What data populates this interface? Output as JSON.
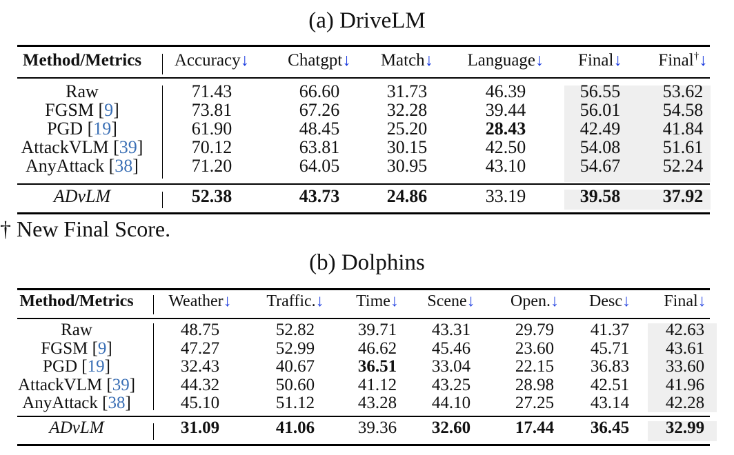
{
  "footnote": "† New Final Score.",
  "tables": [
    {
      "caption": "(a) DriveLM",
      "col_x": [
        119,
        307,
        463,
        590,
        733,
        870,
        990
      ],
      "header": [
        {
          "label": "Method/Metrics",
          "arrow": false,
          "sup": ""
        },
        {
          "label": "Accuracy",
          "arrow": true,
          "sup": ""
        },
        {
          "label": "Chatgpt",
          "arrow": true,
          "sup": ""
        },
        {
          "label": "Match",
          "arrow": true,
          "sup": ""
        },
        {
          "label": "Language",
          "arrow": true,
          "sup": ""
        },
        {
          "label": "Final",
          "arrow": true,
          "sup": ""
        },
        {
          "label": "Final",
          "arrow": true,
          "sup": "†"
        }
      ],
      "rows": [
        {
          "method": "Raw",
          "ref": "",
          "values": [
            "71.43",
            "66.60",
            "31.73",
            "46.39",
            "56.55",
            "53.62"
          ],
          "bold": []
        },
        {
          "method": "FGSM",
          "ref": "9",
          "values": [
            "73.81",
            "67.26",
            "32.28",
            "39.44",
            "56.01",
            "54.58"
          ],
          "bold": []
        },
        {
          "method": "PGD",
          "ref": "19",
          "values": [
            "61.90",
            "48.45",
            "25.20",
            "28.43",
            "42.49",
            "41.84"
          ],
          "bold": [
            3
          ]
        },
        {
          "method": "AttackVLM",
          "ref": "39",
          "values": [
            "70.12",
            "63.81",
            "30.15",
            "42.50",
            "54.08",
            "51.61"
          ],
          "bold": []
        },
        {
          "method": "AnyAttack",
          "ref": "38",
          "values": [
            "71.20",
            "64.05",
            "30.95",
            "43.10",
            "54.67",
            "52.24"
          ],
          "bold": []
        }
      ],
      "ours": {
        "method": "ADvLM",
        "values": [
          "52.38",
          "43.73",
          "24.86",
          "33.19",
          "39.58",
          "37.92"
        ],
        "bold": [
          0,
          1,
          2,
          4,
          5
        ]
      }
    },
    {
      "caption": "(b) Dolphins",
      "col_x": [
        111,
        290,
        428,
        547,
        654,
        775,
        884,
        993
      ],
      "header": [
        {
          "label": "Method/Metrics",
          "arrow": false,
          "sup": ""
        },
        {
          "label": "Weather",
          "arrow": true,
          "sup": ""
        },
        {
          "label": "Traffic.",
          "arrow": true,
          "sup": ""
        },
        {
          "label": "Time",
          "arrow": true,
          "sup": ""
        },
        {
          "label": "Scene",
          "arrow": true,
          "sup": ""
        },
        {
          "label": "Open.",
          "arrow": true,
          "sup": ""
        },
        {
          "label": "Desc",
          "arrow": true,
          "sup": ""
        },
        {
          "label": "Final",
          "arrow": true,
          "sup": ""
        }
      ],
      "rows": [
        {
          "method": "Raw",
          "ref": "",
          "values": [
            "48.75",
            "52.82",
            "39.71",
            "43.31",
            "29.79",
            "41.37",
            "42.63"
          ],
          "bold": []
        },
        {
          "method": "FGSM",
          "ref": "9",
          "values": [
            "47.27",
            "52.99",
            "46.62",
            "45.46",
            "23.60",
            "45.71",
            "43.61"
          ],
          "bold": []
        },
        {
          "method": "PGD",
          "ref": "19",
          "values": [
            "32.43",
            "40.67",
            "36.51",
            "33.04",
            "22.15",
            "36.83",
            "33.60"
          ],
          "bold": [
            2
          ]
        },
        {
          "method": "AttackVLM",
          "ref": "39",
          "values": [
            "44.32",
            "50.60",
            "41.12",
            "43.25",
            "28.98",
            "42.51",
            "41.96"
          ],
          "bold": []
        },
        {
          "method": "AnyAttack",
          "ref": "38",
          "values": [
            "45.10",
            "51.12",
            "43.28",
            "44.10",
            "27.25",
            "43.14",
            "42.28"
          ],
          "bold": []
        }
      ],
      "ours": {
        "method": "ADvLM",
        "values": [
          "31.09",
          "41.06",
          "39.36",
          "32.60",
          "17.44",
          "36.45",
          "32.99"
        ],
        "bold": [
          0,
          1,
          3,
          4,
          5,
          6
        ]
      }
    }
  ]
}
